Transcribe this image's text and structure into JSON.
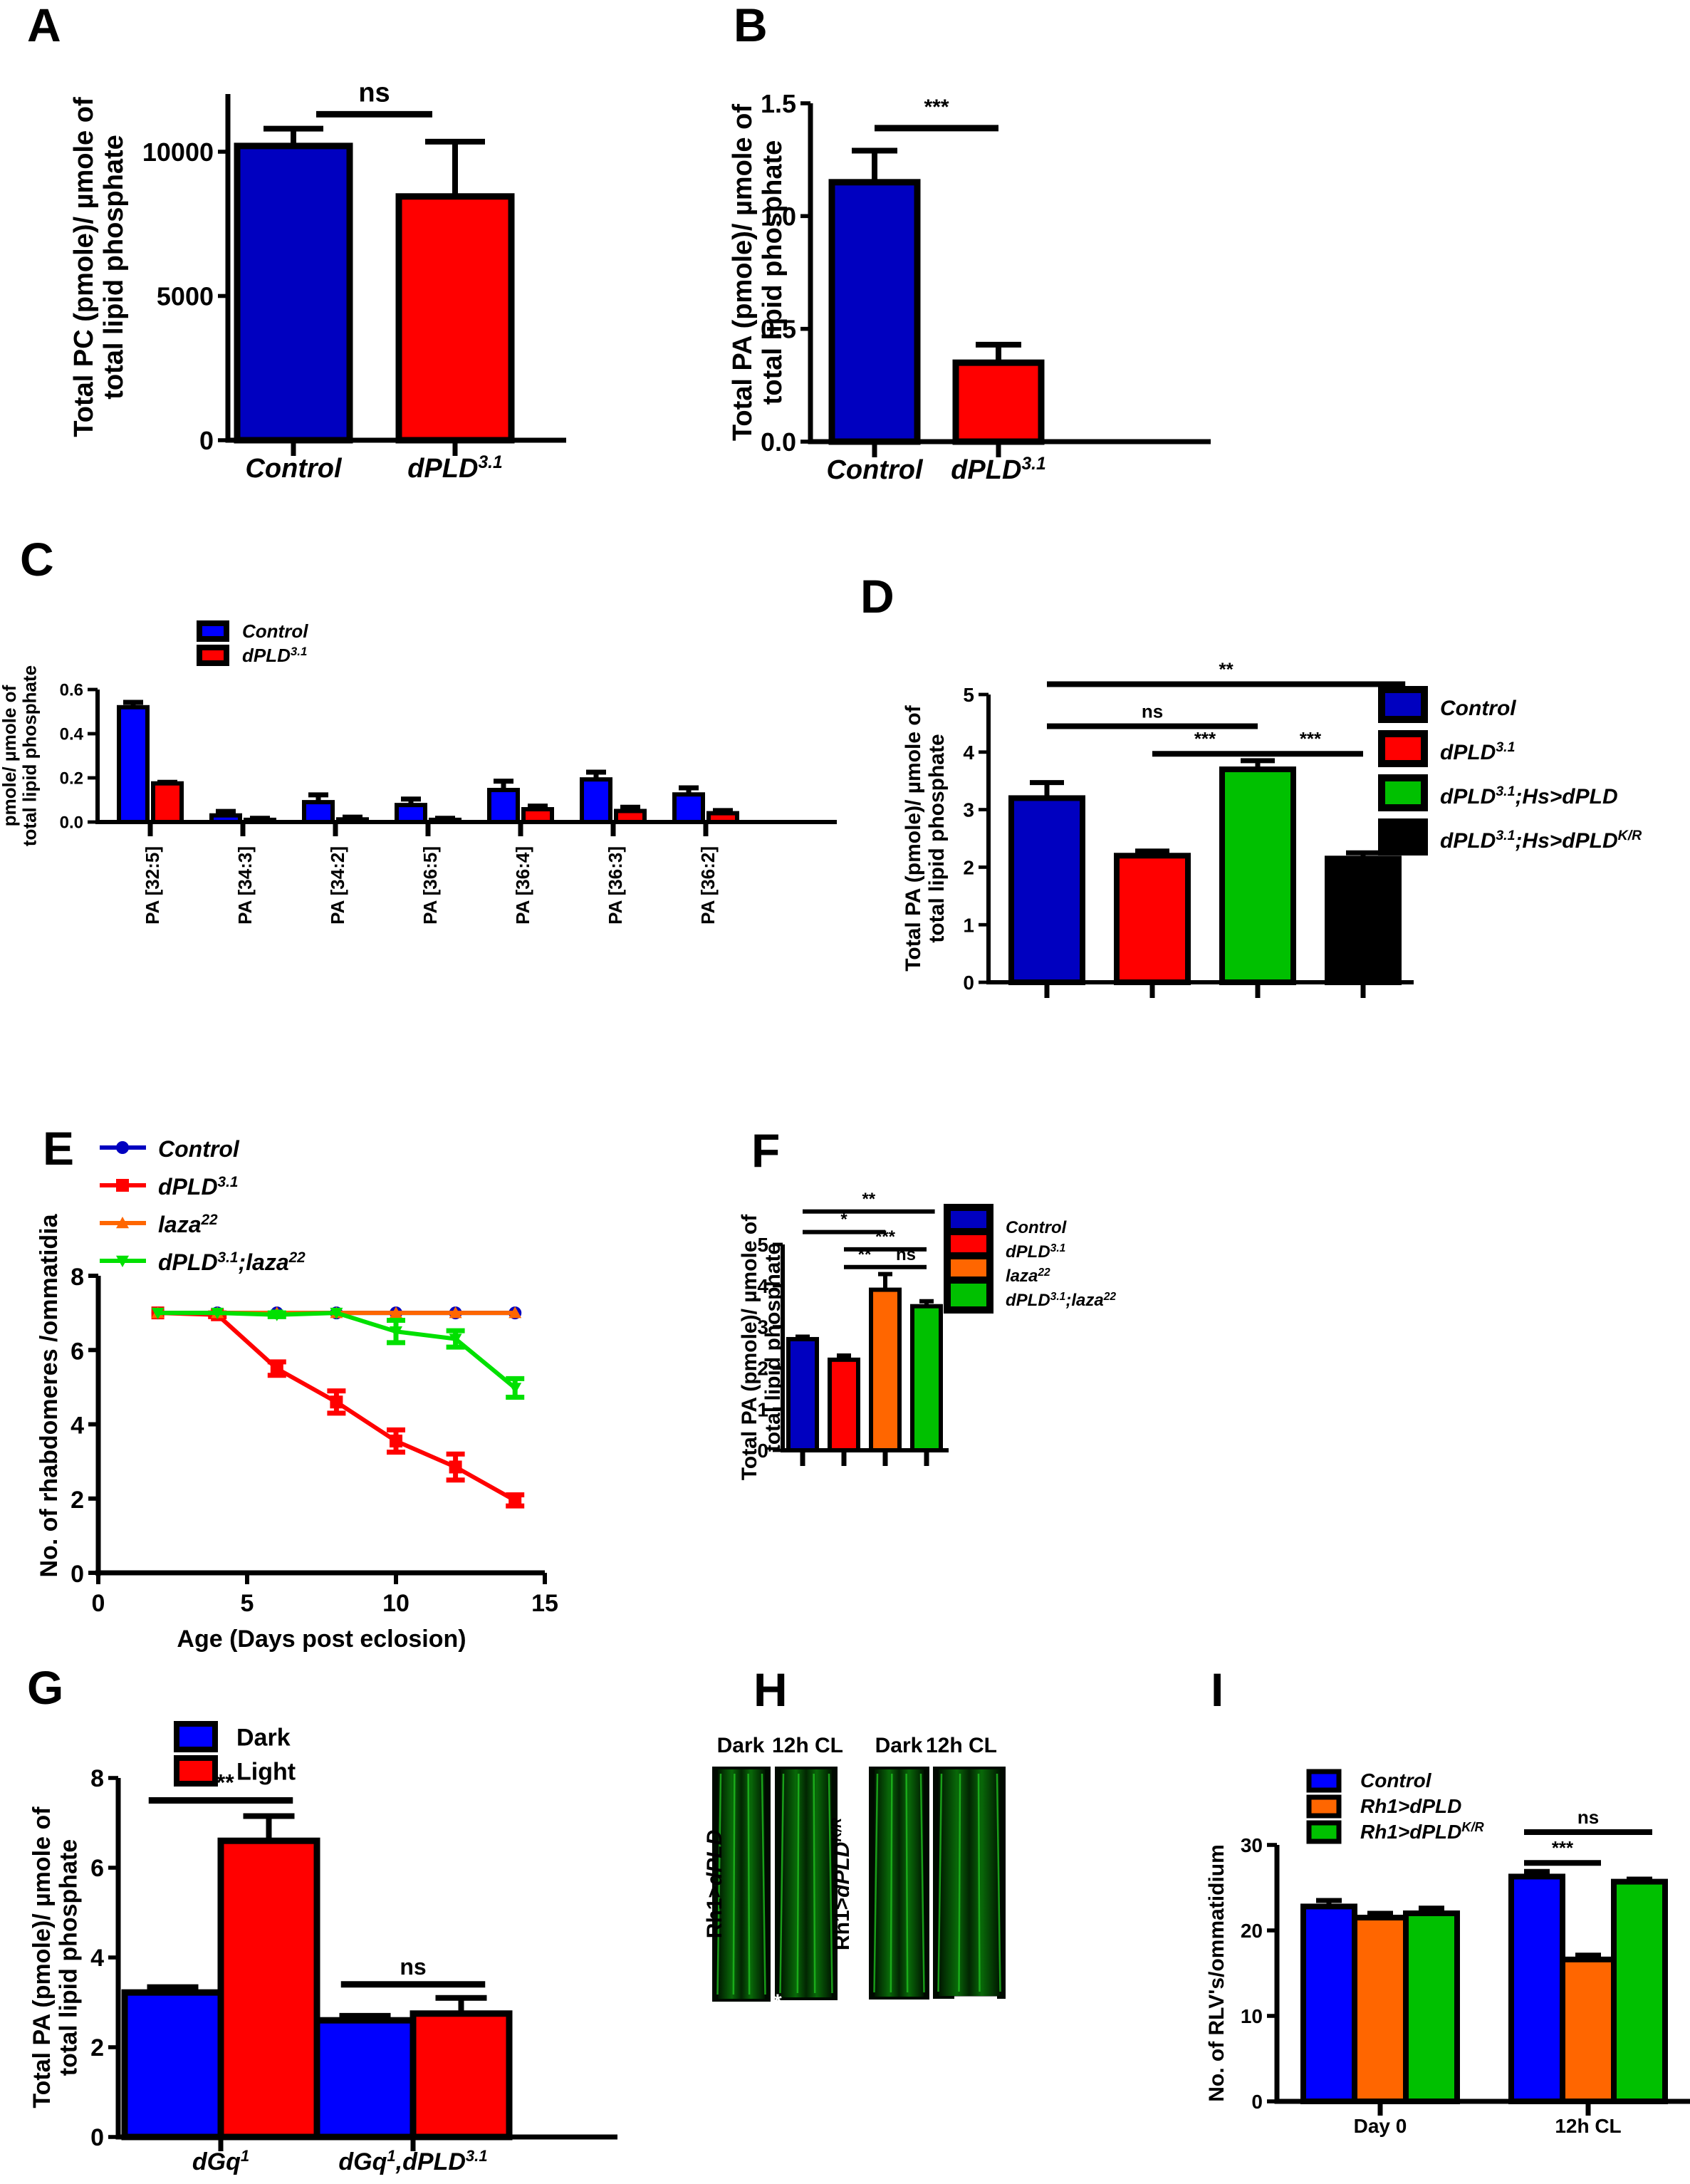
{
  "chart_data": [
    {
      "id": "A",
      "panel_label": "A",
      "type": "bar",
      "ylabel": [
        "Total PC (pmole)/ µmole of",
        "total lipid phosphate"
      ],
      "ylim": [
        0,
        12000
      ],
      "yticks": [
        0,
        5000,
        10000
      ],
      "ytick_labels": [
        "0",
        "5000",
        "10000"
      ],
      "categories": [
        {
          "label": "Control",
          "italic": true,
          "sup": ""
        },
        {
          "label": "dPLD",
          "italic": true,
          "sup": "3.1"
        }
      ],
      "values": [
        10200,
        8450
      ],
      "errors": [
        600,
        1900
      ],
      "colors": [
        "#0000c0",
        "#ff0000"
      ],
      "significance": [
        {
          "from": 0,
          "to": 1,
          "label": "ns",
          "y": 11300
        }
      ]
    },
    {
      "id": "B",
      "panel_label": "B",
      "type": "bar",
      "ylabel": [
        "Total PA (pmole)/ µmole of",
        "total lipid phosphate"
      ],
      "ylim": [
        0,
        1.5
      ],
      "yticks": [
        0,
        0.5,
        1.0,
        1.5
      ],
      "ytick_labels": [
        "0.0",
        "0.5",
        "1.0",
        "1.5"
      ],
      "categories": [
        {
          "label": "Control",
          "italic": true,
          "sup": ""
        },
        {
          "label": "dPLD",
          "italic": true,
          "sup": "3.1"
        }
      ],
      "values": [
        1.15,
        0.35
      ],
      "errors": [
        0.14,
        0.08
      ],
      "colors": [
        "#0000c0",
        "#ff0000"
      ],
      "significance": [
        {
          "from": 0,
          "to": 1,
          "label": "***",
          "y": 1.39
        }
      ]
    },
    {
      "id": "C",
      "panel_label": "C",
      "type": "bar",
      "ylabel": [
        "pmole/ µmole of",
        "total lipid phosphate"
      ],
      "ylim": [
        0,
        0.6
      ],
      "yticks": [
        0,
        0.2,
        0.4,
        0.6
      ],
      "ytick_labels": [
        "0.0",
        "0.2",
        "0.4",
        "0.6"
      ],
      "categories": [
        "PA [32:5]",
        "PA [34:3]",
        "PA [34:2]",
        "PA [36:5]",
        "PA [36:4]",
        "PA [36:3]",
        "PA [36:2]"
      ],
      "series": [
        {
          "name": "Control",
          "sup": "",
          "color": "#0000ff",
          "values": [
            0.52,
            0.03,
            0.09,
            0.077,
            0.145,
            0.193,
            0.125
          ],
          "errors": [
            0.022,
            0.018,
            0.033,
            0.027,
            0.04,
            0.033,
            0.03
          ]
        },
        {
          "name": "dPLD",
          "sup": "3.1",
          "color": "#ff0000",
          "values": [
            0.175,
            0.01,
            0.012,
            0.01,
            0.058,
            0.05,
            0.04
          ],
          "errors": [
            0.005,
            0.007,
            0.01,
            0.007,
            0.014,
            0.017,
            0.012
          ]
        }
      ],
      "legend_position": "top-left"
    },
    {
      "id": "D",
      "panel_label": "D",
      "type": "bar",
      "ylabel": [
        "Total PA (pmole)/ µmole of",
        "total lipid phosphate"
      ],
      "ylim": [
        0,
        5
      ],
      "yticks": [
        0,
        1,
        2,
        3,
        4,
        5
      ],
      "ytick_labels": [
        "0",
        "1",
        "2",
        "3",
        "4",
        "5"
      ],
      "categories": [
        {
          "label": "Control",
          "sup": "",
          "suffix": "",
          "suffix_sup": ""
        },
        {
          "label": "dPLD",
          "sup": "3.1",
          "suffix": "",
          "suffix_sup": ""
        },
        {
          "label": "dPLD",
          "sup": "3.1",
          "suffix": ";Hs>dPLD",
          "suffix_sup": ""
        },
        {
          "label": "dPLD",
          "sup": "3.1",
          "suffix": ";Hs>dPLD",
          "suffix_sup": "K/R"
        }
      ],
      "values": [
        3.2,
        2.2,
        3.7,
        2.15
      ],
      "errors": [
        0.27,
        0.08,
        0.15,
        0.1
      ],
      "colors": [
        "#0000c0",
        "#ff0000",
        "#00c000",
        "#000000"
      ],
      "significance": [
        {
          "from": 0,
          "to": 3.4,
          "label": "**",
          "y": 5.18
        },
        {
          "from": 0,
          "to": 2,
          "label": "ns",
          "y": 4.45
        },
        {
          "from": 1,
          "to": 2,
          "label": "***",
          "y": 3.97
        },
        {
          "from": 2,
          "to": 3,
          "label": "***",
          "y": 3.97
        }
      ],
      "legend_position": "right"
    },
    {
      "id": "E",
      "panel_label": "E",
      "type": "line",
      "xlabel": "Age (Days post eclosion)",
      "ylabel": [
        "No. of rhabdomeres /ommatidia"
      ],
      "xlim": [
        0,
        15
      ],
      "xticks": [
        0,
        5,
        10,
        15
      ],
      "ylim": [
        0,
        8
      ],
      "yticks": [
        0,
        2,
        4,
        6,
        8
      ],
      "x": [
        2,
        4,
        6,
        8,
        10,
        12,
        14
      ],
      "series": [
        {
          "name": "Control",
          "sup": "",
          "suffix": "",
          "suffix_sup": "",
          "color": "#0000c0",
          "marker": "circle",
          "values": [
            7,
            7,
            7,
            7,
            7,
            7,
            7
          ],
          "errors": [
            0,
            0,
            0,
            0,
            0,
            0,
            0
          ]
        },
        {
          "name": "dPLD",
          "sup": "3.1",
          "suffix": "",
          "suffix_sup": "",
          "color": "#ff0000",
          "marker": "square",
          "values": [
            7,
            6.95,
            5.5,
            4.6,
            3.55,
            2.85,
            1.95
          ],
          "errors": [
            0,
            0.05,
            0.18,
            0.3,
            0.3,
            0.35,
            0.15
          ]
        },
        {
          "name": "laza",
          "sup": "22",
          "suffix": "",
          "suffix_sup": "",
          "color": "#ff6600",
          "marker": "triangle-up",
          "values": [
            7,
            7,
            7,
            7,
            7,
            7,
            7
          ],
          "errors": [
            0,
            0,
            0,
            0,
            0,
            0,
            0
          ]
        },
        {
          "name": "dPLD",
          "sup": "3.1",
          "suffix": ";laza",
          "suffix_sup": "22",
          "color": "#00e000",
          "marker": "triangle-down",
          "values": [
            7,
            7,
            6.95,
            7,
            6.5,
            6.3,
            4.98
          ],
          "errors": [
            0,
            0,
            0.05,
            0,
            0.3,
            0.22,
            0.25
          ]
        }
      ],
      "legend_position": "top"
    },
    {
      "id": "F",
      "panel_label": "F",
      "type": "bar",
      "ylabel": [
        "Total PA (pmole)/ µmole of",
        "total lipid phosphate"
      ],
      "ylim": [
        0,
        5
      ],
      "yticks": [
        0,
        1,
        2,
        3,
        4,
        5
      ],
      "ytick_labels": [
        "0",
        "1",
        "2",
        "3",
        "4",
        "5"
      ],
      "categories": [
        {
          "label": "Control",
          "sup": "",
          "suffix": "",
          "suffix_sup": ""
        },
        {
          "label": "dPLD",
          "sup": "3.1",
          "suffix": "",
          "suffix_sup": ""
        },
        {
          "label": "laza",
          "sup": "22",
          "suffix": "",
          "suffix_sup": ""
        },
        {
          "label": "dPLD",
          "sup": "3.1",
          "suffix": ";laza",
          "suffix_sup": "22"
        }
      ],
      "values": [
        2.7,
        2.2,
        3.9,
        3.5
      ],
      "errors": [
        0.06,
        0.1,
        0.38,
        0.12
      ],
      "colors": [
        "#0000c0",
        "#ff0000",
        "#ff6600",
        "#00c000"
      ],
      "significance": [
        {
          "from": 0,
          "to": 3.2,
          "label": "**",
          "y": 5.8
        },
        {
          "from": 0,
          "to": 2,
          "label": "*",
          "y": 5.3
        },
        {
          "from": 1,
          "to": 3,
          "label": "***",
          "y": 4.88
        },
        {
          "from": 1,
          "to": 2,
          "label": "**",
          "y": 4.45
        },
        {
          "from": 2,
          "to": 3,
          "label": "ns",
          "y": 4.45
        }
      ],
      "legend_position": "right"
    },
    {
      "id": "G",
      "panel_label": "G",
      "type": "bar",
      "ylabel": [
        "Total PA (pmole)/ µmole of",
        "total lipid phosphate"
      ],
      "ylim": [
        0,
        8
      ],
      "yticks": [
        0,
        2,
        4,
        6,
        8
      ],
      "ytick_labels": [
        "0",
        "2",
        "4",
        "6",
        "8"
      ],
      "categories": [
        {
          "label": "dGq",
          "sup": "1",
          "suffix": "",
          "suffix_sup": ""
        },
        {
          "label": "dGq",
          "sup": "1",
          "suffix": ",dPLD",
          "suffix_sup": "3.1"
        }
      ],
      "series": [
        {
          "name": "Dark",
          "color": "#0000ff",
          "values": [
            3.22,
            2.6
          ],
          "errors": [
            0.12,
            0.1
          ]
        },
        {
          "name": "Light",
          "color": "#ff0000",
          "values": [
            6.6,
            2.75
          ],
          "errors": [
            0.55,
            0.35
          ]
        }
      ],
      "significance": [
        {
          "group": 0,
          "label": "***",
          "y": 7.5
        },
        {
          "group": 1,
          "label": "ns",
          "y": 3.4
        }
      ],
      "legend_position": "top-left"
    },
    {
      "id": "I",
      "panel_label": "I",
      "type": "bar",
      "ylabel": [
        "No. of RLV's/ommatidium"
      ],
      "ylim": [
        0,
        30
      ],
      "yticks": [
        0,
        10,
        20,
        30
      ],
      "ytick_labels": [
        "0",
        "10",
        "20",
        "30"
      ],
      "categories": [
        "Day 0",
        "12h CL"
      ],
      "series": [
        {
          "name": "Control",
          "sup": "",
          "color": "#0000ff",
          "values": [
            22.8,
            26.3
          ],
          "errors": [
            0.7,
            0.6
          ]
        },
        {
          "name": "Rh1>dPLD",
          "sup": "",
          "color": "#ff6600",
          "values": [
            21.5,
            16.6
          ],
          "errors": [
            0.5,
            0.5
          ]
        },
        {
          "name": "Rh1>dPLD",
          "sup": "K/R",
          "color": "#00c000",
          "values": [
            22.0,
            25.7
          ],
          "errors": [
            0.6,
            0.3
          ]
        }
      ],
      "significance": [
        {
          "group": 1,
          "from": 0,
          "to": 2,
          "label": "ns",
          "y": 31.5
        },
        {
          "group": 1,
          "from": 0,
          "to": 1,
          "label": "***",
          "y": 27.9
        }
      ],
      "legend_position": "top-left"
    }
  ],
  "image_panel": {
    "panel_label": "H",
    "column_labels": [
      "Dark",
      "12h CL",
      "Dark",
      "12h CL"
    ],
    "row_labels": [
      {
        "text": "Rh1>",
        "italic_part": "dPLD",
        "sup": ""
      },
      {
        "text": "Rh1>",
        "italic_part": "dPLD",
        "sup": "K/R"
      }
    ],
    "annotation": "*",
    "fluorescence_color": "#00c000"
  }
}
